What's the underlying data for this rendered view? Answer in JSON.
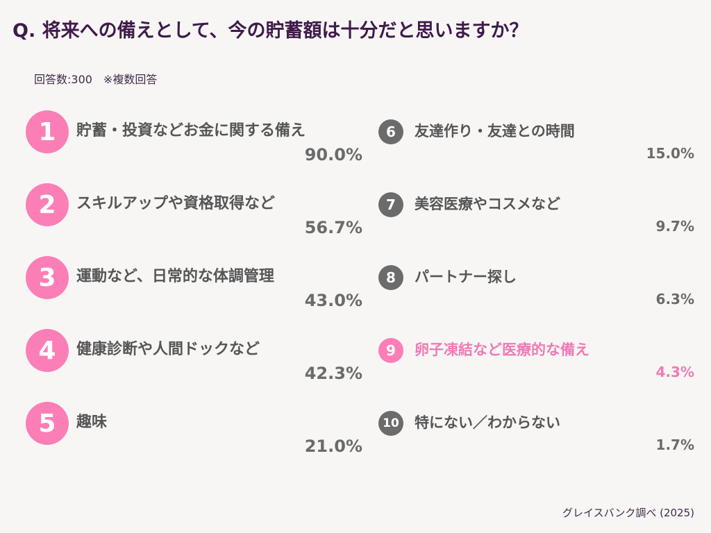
{
  "title": "Q. 将来への備えとして、今の貯蓄額は十分だと思いますか？",
  "subtitle": "回答数:300　※複数回答",
  "footer": "グレイスバンク調べ (2025)",
  "colors": {
    "pink": "#fb7fb6",
    "gray_badge": "#6b6b6b",
    "label": "#555555",
    "pct": "#6b6b6b",
    "title": "#3f1a4a",
    "highlight": "#f07ab5"
  },
  "chart_data": {
    "type": "table",
    "title": "Q. 将来への備えとして、今の貯蓄額は十分だと思いますか？",
    "rows": [
      {
        "rank": "1",
        "label": "貯蓄・投資などお金に関する備え",
        "value": 90.0,
        "display": "90.0%"
      },
      {
        "rank": "2",
        "label": "スキルアップや資格取得など",
        "value": 56.7,
        "display": "56.7%"
      },
      {
        "rank": "3",
        "label": "運動など、日常的な体調管理",
        "value": 43.0,
        "display": "43.0%"
      },
      {
        "rank": "4",
        "label": "健康診断や人間ドックなど",
        "value": 42.3,
        "display": "42.3%"
      },
      {
        "rank": "5",
        "label": "趣味",
        "value": 21.0,
        "display": "21.0%"
      },
      {
        "rank": "6",
        "label": "友達作り・友達との時間",
        "value": 15.0,
        "display": "15.0%"
      },
      {
        "rank": "7",
        "label": "美容医療やコスメなど",
        "value": 9.7,
        "display": "9.7%"
      },
      {
        "rank": "8",
        "label": "パートナー探し",
        "value": 6.3,
        "display": "6.3%"
      },
      {
        "rank": "9",
        "label": "卵子凍結など医療的な備え",
        "value": 4.3,
        "display": "4.3%",
        "highlighted": true
      },
      {
        "rank": "10",
        "label": "特にない／わからない",
        "value": 1.7,
        "display": "1.7%"
      }
    ]
  }
}
